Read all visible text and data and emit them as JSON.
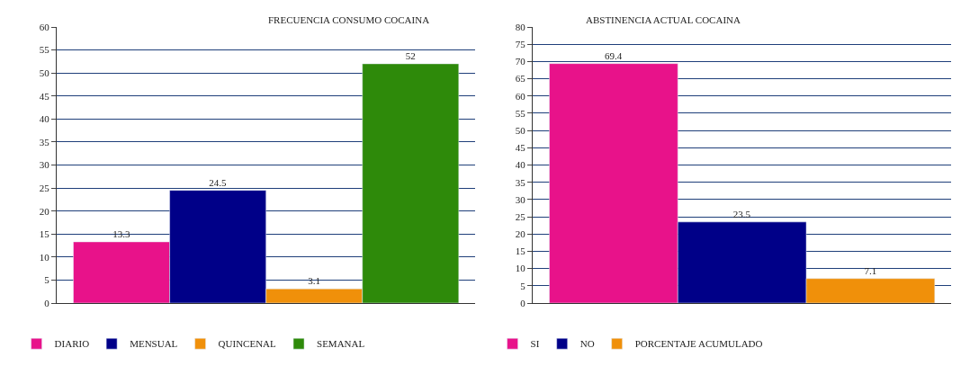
{
  "chart_data": [
    {
      "type": "bar",
      "title": "FRECUENCIA CONSUMO COCAINA",
      "categories": [
        null
      ],
      "series": [
        {
          "name": "DIARIO",
          "color": "#e8128a",
          "values": [
            13.3
          ]
        },
        {
          "name": "MENSUAL",
          "color": "#000088",
          "values": [
            24.5
          ]
        },
        {
          "name": "QUINCENAL",
          "color": "#f0900a",
          "values": [
            3.1
          ]
        },
        {
          "name": "SEMANAL",
          "color": "#2e8a0a",
          "values": [
            52
          ]
        }
      ],
      "ylim": [
        0,
        60
      ],
      "yticks": [
        0,
        5,
        10,
        15,
        20,
        25,
        30,
        35,
        40,
        45,
        50,
        55,
        60
      ],
      "grid": "y",
      "legend": "bottom",
      "data_labels": true
    },
    {
      "type": "bar",
      "title": "ABSTINENCIA ACTUAL COCAINA",
      "categories": [
        null
      ],
      "series": [
        {
          "name": "SI",
          "color": "#e8128a",
          "values": [
            69.4
          ]
        },
        {
          "name": "NO",
          "color": "#000088",
          "values": [
            23.5
          ]
        },
        {
          "name": "PORCENTAJE ACUMULADO",
          "color": "#f0900a",
          "values": [
            7.1
          ]
        }
      ],
      "ylim": [
        0,
        80
      ],
      "yticks": [
        0,
        5,
        10,
        15,
        20,
        25,
        30,
        35,
        40,
        45,
        50,
        55,
        60,
        65,
        70,
        75,
        80
      ],
      "grid": "y",
      "legend": "bottom",
      "data_labels": true
    }
  ]
}
